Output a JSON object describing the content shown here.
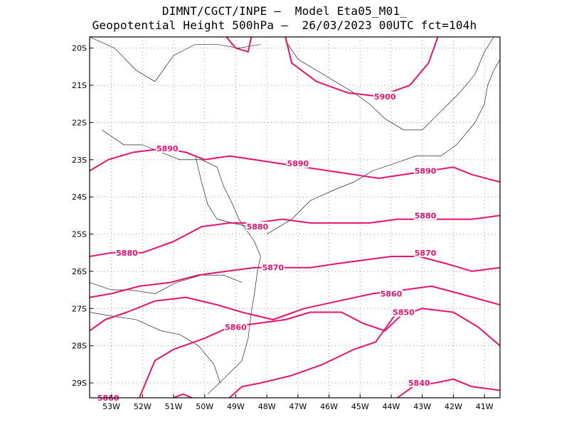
{
  "title_line1": "DIMNT/CGCT/INPE –  Model Eta05_M01_",
  "title_line2": "Geopotential Height 500hPa –  26/03/2023 00UTC fct=104h",
  "colors": {
    "contour": "#e8126e",
    "border": "#000000",
    "grid": "#999999"
  },
  "map": {
    "lon_range": [
      -53.7,
      -40.5
    ],
    "lat_range": [
      -29.4,
      -19.7
    ],
    "lon_ticks": [
      -53,
      -52,
      -51,
      -50,
      -49,
      -48,
      -47,
      -46,
      -45,
      -44,
      -43,
      -42,
      -41
    ],
    "lat_ticks": [
      -20,
      -21,
      -22,
      -23,
      -24,
      -25,
      -26,
      -27,
      -28,
      -29
    ],
    "lon_tick_labels": [
      "53W",
      "52W",
      "51W",
      "50W",
      "49W",
      "48W",
      "47W",
      "46W",
      "45W",
      "44W",
      "43W",
      "42W",
      "41W"
    ],
    "lat_tick_labels": [
      "20S",
      "21S",
      "22S",
      "23S",
      "24S",
      "25S",
      "26S",
      "27S",
      "28S",
      "29S"
    ],
    "grid": "dotted"
  },
  "contours": [
    {
      "label": "5900",
      "label_pos": [
        -44.2,
        -21.3
      ],
      "points": [
        [
          -49.3,
          -19.7
        ],
        [
          -49.0,
          -20.0
        ],
        [
          -48.6,
          -20.1
        ],
        [
          -48.5,
          -19.7
        ]
      ]
    },
    {
      "label": "5900",
      "label_pos": [
        -44.2,
        -21.3
      ],
      "points": [
        [
          -47.4,
          -19.7
        ],
        [
          -47.2,
          -20.4
        ],
        [
          -46.4,
          -20.9
        ],
        [
          -45.4,
          -21.2
        ],
        [
          -44.4,
          -21.3
        ],
        [
          -43.4,
          -21.0
        ],
        [
          -42.8,
          -20.4
        ],
        [
          -42.5,
          -19.7
        ]
      ]
    },
    {
      "label": "5890",
      "label_pos": [
        -51.2,
        -22.7
      ],
      "points": [
        [
          -53.7,
          -23.3
        ],
        [
          -53.1,
          -23.0
        ],
        [
          -52.3,
          -22.8
        ],
        [
          -51.3,
          -22.7
        ],
        [
          -50.6,
          -22.8
        ],
        [
          -50.0,
          -23.0
        ],
        [
          -49.2,
          -22.9
        ],
        [
          -48.4,
          -23.0
        ],
        [
          -47.6,
          -23.1
        ],
        [
          -46.8,
          -23.2
        ],
        [
          -46.0,
          -23.3
        ],
        [
          -45.2,
          -23.4
        ],
        [
          -44.4,
          -23.5
        ],
        [
          -43.6,
          -23.4
        ],
        [
          -42.8,
          -23.3
        ],
        [
          -42.0,
          -23.2
        ],
        [
          -41.4,
          -23.4
        ],
        [
          -40.5,
          -23.6
        ]
      ]
    },
    {
      "label": "5880",
      "label_pos": [
        -48.3,
        -24.8
      ],
      "points": [
        [
          -53.7,
          -25.6
        ],
        [
          -53.0,
          -25.5
        ],
        [
          -52.0,
          -25.5
        ],
        [
          -51.0,
          -25.2
        ],
        [
          -50.1,
          -24.8
        ],
        [
          -49.2,
          -24.7
        ],
        [
          -48.4,
          -24.7
        ],
        [
          -47.5,
          -24.6
        ],
        [
          -46.6,
          -24.7
        ],
        [
          -45.7,
          -24.7
        ],
        [
          -44.7,
          -24.7
        ],
        [
          -43.8,
          -24.6
        ],
        [
          -43.0,
          -24.6
        ],
        [
          -42.2,
          -24.6
        ],
        [
          -41.4,
          -24.6
        ],
        [
          -40.5,
          -24.5
        ]
      ]
    },
    {
      "label": "5870",
      "label_pos": [
        -47.8,
        -25.9
      ],
      "points": [
        [
          -53.7,
          -26.7
        ],
        [
          -53.0,
          -26.6
        ],
        [
          -52.1,
          -26.4
        ],
        [
          -51.1,
          -26.3
        ],
        [
          -50.2,
          -26.1
        ],
        [
          -49.3,
          -26.0
        ],
        [
          -48.4,
          -25.9
        ],
        [
          -47.5,
          -25.9
        ],
        [
          -46.6,
          -25.9
        ],
        [
          -45.8,
          -25.8
        ],
        [
          -44.9,
          -25.7
        ],
        [
          -44.0,
          -25.6
        ],
        [
          -43.1,
          -25.6
        ],
        [
          -42.2,
          -25.8
        ],
        [
          -41.4,
          -26.0
        ],
        [
          -40.5,
          -25.9
        ]
      ]
    },
    {
      "label": "5860",
      "label_pos": [
        -44.0,
        -26.6
      ],
      "points": [
        [
          -53.7,
          -27.6
        ],
        [
          -53.2,
          -27.3
        ],
        [
          -52.5,
          -27.1
        ],
        [
          -51.6,
          -26.8
        ],
        [
          -50.6,
          -26.7
        ],
        [
          -49.6,
          -26.9
        ],
        [
          -48.8,
          -27.1
        ],
        [
          -47.8,
          -27.3
        ],
        [
          -46.8,
          -27.0
        ],
        [
          -45.7,
          -26.8
        ],
        [
          -44.6,
          -26.6
        ],
        [
          -43.6,
          -26.5
        ],
        [
          -42.7,
          -26.4
        ],
        [
          -41.8,
          -26.6
        ],
        [
          -40.5,
          -26.9
        ]
      ]
    },
    {
      "label": "5860",
      "label_pos": [
        -49.0,
        -27.5
      ],
      "points": [
        [
          -52.1,
          -29.4
        ],
        [
          -51.9,
          -29.0
        ],
        [
          -51.6,
          -28.4
        ],
        [
          -51.0,
          -28.1
        ],
        [
          -50.0,
          -27.8
        ],
        [
          -49.2,
          -27.5
        ],
        [
          -48.3,
          -27.4
        ],
        [
          -47.4,
          -27.3
        ],
        [
          -46.6,
          -27.1
        ],
        [
          -45.6,
          -27.1
        ],
        [
          -44.9,
          -27.4
        ],
        [
          -44.2,
          -27.6
        ],
        [
          -43.7,
          -27.2
        ],
        [
          -43.0,
          -27.0
        ],
        [
          -42.0,
          -27.1
        ],
        [
          -41.2,
          -27.5
        ],
        [
          -40.5,
          -28.0
        ]
      ]
    },
    {
      "label": "5860",
      "label_pos": [
        -53.1,
        -29.4
      ],
      "points": [
        [
          -51.0,
          -29.4
        ],
        [
          -50.7,
          -29.3
        ],
        [
          -50.4,
          -29.4
        ]
      ]
    },
    {
      "label": "5850",
      "label_pos": [
        -43.6,
        -27.2
      ],
      "points": [
        [
          -49.2,
          -29.4
        ],
        [
          -48.8,
          -29.1
        ],
        [
          -48.2,
          -29.0
        ],
        [
          -47.2,
          -28.8
        ],
        [
          -46.2,
          -28.5
        ],
        [
          -45.2,
          -28.1
        ],
        [
          -44.5,
          -27.9
        ],
        [
          -43.9,
          -27.2
        ]
      ]
    },
    {
      "label": "5840",
      "label_pos": [
        -43.1,
        -29.0
      ],
      "points": [
        [
          -43.8,
          -29.4
        ],
        [
          -43.3,
          -29.1
        ],
        [
          -42.6,
          -29.0
        ],
        [
          -42.0,
          -28.9
        ],
        [
          -41.4,
          -29.1
        ],
        [
          -40.5,
          -29.2
        ]
      ]
    }
  ],
  "contour_labels": [
    {
      "text": "5900",
      "pos": [
        -44.2,
        -21.3
      ]
    },
    {
      "text": "5890",
      "pos": [
        -51.2,
        -22.7
      ]
    },
    {
      "text": "5890",
      "pos": [
        -47.0,
        -23.1
      ]
    },
    {
      "text": "5890",
      "pos": [
        -42.9,
        -23.3
      ]
    },
    {
      "text": "5880",
      "pos": [
        -48.3,
        -24.8
      ]
    },
    {
      "text": "5880",
      "pos": [
        -52.5,
        -25.5
      ]
    },
    {
      "text": "5880",
      "pos": [
        -42.9,
        -24.5
      ]
    },
    {
      "text": "5870",
      "pos": [
        -47.8,
        -25.9
      ]
    },
    {
      "text": "5870",
      "pos": [
        -42.9,
        -25.5
      ]
    },
    {
      "text": "5860",
      "pos": [
        -44.0,
        -26.6
      ]
    },
    {
      "text": "5860",
      "pos": [
        -49.0,
        -27.5
      ]
    },
    {
      "text": "5860",
      "pos": [
        -53.1,
        -29.4
      ]
    },
    {
      "text": "5850",
      "pos": [
        -43.6,
        -27.1
      ]
    },
    {
      "text": "5840",
      "pos": [
        -43.1,
        -29.0
      ]
    }
  ],
  "boundaries": [
    {
      "name": "coastline",
      "points": [
        [
          -53.3,
          -22.2
        ],
        [
          -52.6,
          -22.6
        ],
        [
          -52.0,
          -22.6
        ],
        [
          -51.4,
          -22.8
        ],
        [
          -50.8,
          -23.0
        ],
        [
          -50.1,
          -23.0
        ],
        [
          -49.6,
          -23.2
        ],
        [
          -49.4,
          -23.7
        ],
        [
          -49.1,
          -24.2
        ],
        [
          -48.9,
          -24.6
        ],
        [
          -48.4,
          -25.2
        ],
        [
          -48.2,
          -25.6
        ],
        [
          -48.3,
          -26.0
        ],
        [
          -48.4,
          -26.6
        ],
        [
          -48.5,
          -27.1
        ],
        [
          -48.6,
          -27.8
        ],
        [
          -48.8,
          -28.4
        ],
        [
          -49.4,
          -28.9
        ],
        [
          -49.9,
          -29.3
        ]
      ]
    },
    {
      "name": "coast-east",
      "points": [
        [
          -48.0,
          -25.0
        ],
        [
          -47.2,
          -24.6
        ],
        [
          -46.6,
          -24.1
        ],
        [
          -45.8,
          -23.8
        ],
        [
          -45.2,
          -23.6
        ],
        [
          -44.6,
          -23.3
        ],
        [
          -43.9,
          -23.1
        ],
        [
          -43.2,
          -22.9
        ],
        [
          -42.4,
          -22.9
        ],
        [
          -41.9,
          -22.6
        ],
        [
          -41.3,
          -22.0
        ],
        [
          -41.0,
          -21.5
        ],
        [
          -40.9,
          -21.0
        ],
        [
          -40.7,
          -20.6
        ],
        [
          -40.5,
          -20.3
        ]
      ]
    },
    {
      "name": "state-border-1",
      "points": [
        [
          -53.7,
          -19.7
        ],
        [
          -52.9,
          -20.0
        ],
        [
          -52.2,
          -20.6
        ],
        [
          -51.6,
          -20.9
        ],
        [
          -51.0,
          -20.2
        ],
        [
          -50.3,
          -19.9
        ],
        [
          -49.6,
          -19.9
        ],
        [
          -48.9,
          -20.0
        ],
        [
          -48.2,
          -19.9
        ]
      ]
    },
    {
      "name": "state-border-2",
      "points": [
        [
          -47.4,
          -19.8
        ],
        [
          -47.0,
          -20.3
        ],
        [
          -46.4,
          -20.6
        ],
        [
          -45.8,
          -20.9
        ],
        [
          -45.2,
          -21.2
        ],
        [
          -44.7,
          -21.5
        ],
        [
          -44.2,
          -21.9
        ],
        [
          -43.6,
          -22.2
        ],
        [
          -43.0,
          -22.2
        ],
        [
          -42.4,
          -21.7
        ],
        [
          -41.8,
          -21.2
        ],
        [
          -41.3,
          -20.7
        ],
        [
          -41.0,
          -20.1
        ],
        [
          -40.7,
          -19.7
        ]
      ]
    },
    {
      "name": "state-border-3",
      "points": [
        [
          -53.7,
          -26.3
        ],
        [
          -53.0,
          -26.5
        ],
        [
          -52.4,
          -26.5
        ],
        [
          -51.6,
          -26.6
        ],
        [
          -50.9,
          -26.3
        ],
        [
          -50.1,
          -26.1
        ],
        [
          -49.4,
          -26.1
        ],
        [
          -48.8,
          -26.3
        ]
      ]
    },
    {
      "name": "state-border-4",
      "points": [
        [
          -53.7,
          -27.1
        ],
        [
          -53.0,
          -27.2
        ],
        [
          -52.2,
          -27.3
        ],
        [
          -51.4,
          -27.6
        ],
        [
          -50.8,
          -27.7
        ],
        [
          -50.2,
          -28.0
        ],
        [
          -49.7,
          -28.5
        ],
        [
          -49.5,
          -29.0
        ]
      ]
    },
    {
      "name": "state-border-5",
      "points": [
        [
          -50.3,
          -22.9
        ],
        [
          -50.1,
          -23.6
        ],
        [
          -49.9,
          -24.2
        ],
        [
          -49.6,
          -24.6
        ],
        [
          -49.1,
          -24.7
        ],
        [
          -48.6,
          -24.8
        ]
      ]
    }
  ]
}
